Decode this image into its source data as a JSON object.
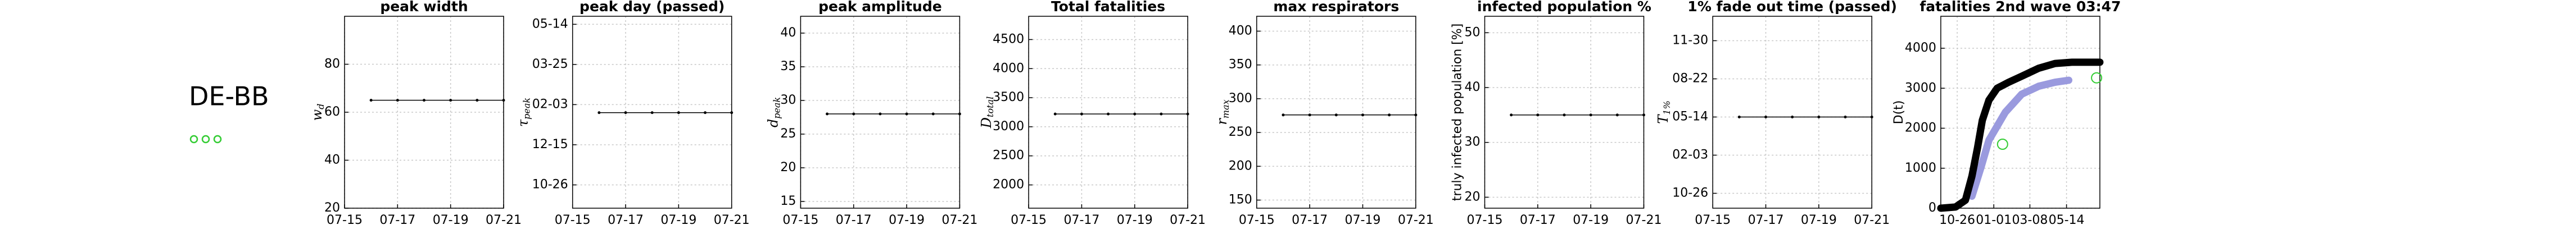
{
  "label": "DE-BB",
  "chart_data": [
    {
      "type": "line",
      "title": "peak width",
      "ylabel": "w",
      "ylabel_sub": "d",
      "xlim": [
        "07-15",
        "07-21"
      ],
      "xticks": [
        "07-15",
        "07-17",
        "07-19",
        "07-21"
      ],
      "ylim": [
        20,
        100
      ],
      "yticks": [
        20,
        40,
        60,
        80
      ],
      "grid": true,
      "series": [
        {
          "style": "line-dots",
          "color": "#000000",
          "x": [
            "07-16",
            "07-17",
            "07-18",
            "07-19",
            "07-20",
            "07-21"
          ],
          "values": [
            65,
            65,
            65,
            65,
            65,
            65
          ]
        }
      ]
    },
    {
      "type": "line",
      "title": "peak day (passed)",
      "ylabel": "τ",
      "ylabel_sub": "peak",
      "xlim": [
        "07-15",
        "07-21"
      ],
      "xticks": [
        "07-15",
        "07-17",
        "07-19",
        "07-21"
      ],
      "ylim": [
        "09-27",
        "05-24"
      ],
      "yticks": [
        "10-26",
        "12-15",
        "02-03",
        "03-25",
        "05-14"
      ],
      "grid": true,
      "series": [
        {
          "style": "line-dots",
          "color": "#000000",
          "x": [
            "07-16",
            "07-17",
            "07-18",
            "07-19",
            "07-20",
            "07-21"
          ],
          "values": [
            "01-24",
            "01-24",
            "01-24",
            "01-24",
            "01-24",
            "01-24"
          ]
        }
      ]
    },
    {
      "type": "line",
      "title": "peak amplitude",
      "ylabel": "d",
      "ylabel_sub": "peak",
      "xlim": [
        "07-15",
        "07-21"
      ],
      "xticks": [
        "07-15",
        "07-17",
        "07-19",
        "07-21"
      ],
      "ylim": [
        14,
        42.5
      ],
      "yticks": [
        15,
        20,
        25,
        30,
        35,
        40
      ],
      "grid": true,
      "series": [
        {
          "style": "line-dots",
          "color": "#000000",
          "x": [
            "07-16",
            "07-17",
            "07-18",
            "07-19",
            "07-20",
            "07-21"
          ],
          "values": [
            28,
            28,
            28,
            28,
            28,
            28
          ]
        }
      ]
    },
    {
      "type": "line",
      "title": "Total fatalities",
      "ylabel": "D",
      "ylabel_sub": "total",
      "xlim": [
        "07-15",
        "07-21"
      ],
      "xticks": [
        "07-15",
        "07-17",
        "07-19",
        "07-21"
      ],
      "ylim": [
        1600,
        4900
      ],
      "yticks": [
        2000,
        2500,
        3000,
        3500,
        4000,
        4500
      ],
      "grid": true,
      "series": [
        {
          "style": "line-dots",
          "color": "#000000",
          "x": [
            "07-16",
            "07-17",
            "07-18",
            "07-19",
            "07-20",
            "07-21"
          ],
          "values": [
            3220,
            3220,
            3220,
            3220,
            3220,
            3220
          ]
        }
      ]
    },
    {
      "type": "line",
      "title": "max respirators",
      "ylabel": "r",
      "ylabel_sub": "max",
      "xlim": [
        "07-15",
        "07-21"
      ],
      "xticks": [
        "07-15",
        "07-17",
        "07-19",
        "07-21"
      ],
      "ylim": [
        138,
        422
      ],
      "yticks": [
        150,
        200,
        250,
        300,
        350,
        400
      ],
      "grid": true,
      "series": [
        {
          "style": "line-dots",
          "color": "#000000",
          "x": [
            "07-16",
            "07-17",
            "07-18",
            "07-19",
            "07-20",
            "07-21"
          ],
          "values": [
            276,
            276,
            276,
            276,
            276,
            276
          ]
        }
      ]
    },
    {
      "type": "line",
      "title": "infected population %",
      "ylabel": "truly infected population [%]",
      "xlim": [
        "07-15",
        "07-21"
      ],
      "xticks": [
        "07-15",
        "07-17",
        "07-19",
        "07-21"
      ],
      "ylim": [
        18,
        53
      ],
      "yticks": [
        20,
        30,
        40,
        50
      ],
      "grid": true,
      "series": [
        {
          "style": "line-dots",
          "color": "#000000",
          "x": [
            "07-16",
            "07-17",
            "07-18",
            "07-19",
            "07-20",
            "07-21"
          ],
          "values": [
            35,
            35,
            35,
            35,
            35,
            35
          ]
        }
      ]
    },
    {
      "type": "line",
      "title": "1% fade out time (passed)",
      "ylabel": "T",
      "ylabel_sub": "1%",
      "xlim": [
        "07-15",
        "07-21"
      ],
      "xticks": [
        "07-15",
        "07-17",
        "07-19",
        "07-21"
      ],
      "ylim": [
        "09-17",
        "02-02"
      ],
      "yticks": [
        "10-26",
        "02-03",
        "05-14",
        "08-22",
        "11-30"
      ],
      "grid": true,
      "series": [
        {
          "style": "line-dots",
          "color": "#000000",
          "x": [
            "07-16",
            "07-17",
            "07-18",
            "07-19",
            "07-20",
            "07-21"
          ],
          "values": [
            "05-14",
            "05-14",
            "05-14",
            "05-14",
            "05-14",
            "05-14"
          ]
        }
      ]
    },
    {
      "type": "line",
      "title": "fatalities 2nd wave 03:47",
      "ylabel": "D(t)",
      "xlim": [
        "09-26",
        "07-14"
      ],
      "xticks": [
        "10-26",
        "01-01",
        "03-08",
        "05-14"
      ],
      "ylim": [
        0,
        4800
      ],
      "yticks": [
        0,
        1000,
        2000,
        3000,
        4000
      ],
      "grid": true,
      "series": [
        {
          "style": "thick-line",
          "color": "#9a9ade",
          "x": [
            "11-22",
            "12-08",
            "12-23",
            "01-22",
            "02-21",
            "03-24",
            "04-23",
            "05-18"
          ],
          "values": [
            300,
            1000,
            1700,
            2400,
            2850,
            3050,
            3150,
            3200
          ]
        },
        {
          "style": "thick-line",
          "color": "#000000",
          "x": [
            "09-26",
            "10-23",
            "11-10",
            "11-22",
            "12-02",
            "12-11",
            "12-23",
            "01-07",
            "01-28",
            "02-21",
            "03-24",
            "04-23",
            "05-24",
            "07-14"
          ],
          "values": [
            0,
            30,
            200,
            800,
            1500,
            2200,
            2700,
            3000,
            3150,
            3300,
            3500,
            3620,
            3650,
            3650
          ]
        },
        {
          "style": "open-markers",
          "color": "#33cc33",
          "x": [
            "01-17",
            "07-08"
          ],
          "values": [
            1600,
            3260
          ]
        }
      ]
    }
  ]
}
